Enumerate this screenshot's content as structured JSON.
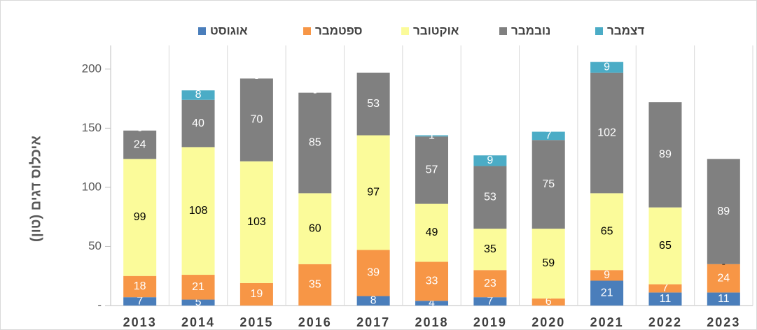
{
  "chart_data": {
    "type": "stacked_bar",
    "y_label": "איכלוס דגים (טון)",
    "categories": [
      "2013",
      "2014",
      "2015",
      "2016",
      "2017",
      "2018",
      "2019",
      "2020",
      "2021",
      "2022",
      "2023"
    ],
    "series": [
      {
        "name": "אוגוסט",
        "color": "#4a7ebb",
        "label_color": "#ffffff",
        "values": [
          7,
          5,
          0,
          0,
          8,
          4,
          7,
          0,
          21,
          11,
          11
        ],
        "value_labels": [
          "7",
          "5",
          null,
          null,
          "8",
          "4",
          "7",
          null,
          "21",
          "11",
          "11"
        ]
      },
      {
        "name": "ספטמבר",
        "color": "#f79646",
        "label_color": "#ffffff",
        "values": [
          18,
          21,
          19,
          35,
          39,
          33,
          23,
          6,
          9,
          7,
          24
        ],
        "value_labels": [
          "18",
          "21",
          "19",
          "35",
          "39",
          "33",
          "23",
          "6",
          "9",
          "7",
          "24"
        ]
      },
      {
        "name": "אוקטובר",
        "color": "#fbfb9a",
        "label_color": "#000000",
        "values": [
          99,
          108,
          103,
          60,
          97,
          49,
          35,
          59,
          65,
          65,
          0
        ],
        "value_labels": [
          "99",
          "108",
          "103",
          "60",
          "97",
          "49",
          "35",
          "59",
          "65",
          "65",
          "-"
        ]
      },
      {
        "name": "נובמבר",
        "color": "#808080",
        "label_color": "#ffffff",
        "values": [
          24,
          40,
          70,
          85,
          53,
          57,
          53,
          75,
          102,
          89,
          89
        ],
        "value_labels": [
          "24",
          "40",
          "70",
          "85",
          "53",
          "57",
          "53",
          "75",
          "102",
          "89",
          "89"
        ]
      },
      {
        "name": "דצמבר",
        "color": "#4bacc6",
        "label_color": "#ffffff",
        "values": [
          0,
          8,
          0,
          0,
          0,
          1,
          9,
          7,
          9,
          0,
          0
        ],
        "value_labels": [
          "-",
          "8",
          "-",
          "-",
          null,
          "1",
          "9",
          "7",
          "9",
          null,
          null
        ]
      }
    ],
    "ylim": [
      0,
      220
    ],
    "yticks": [
      {
        "value": 0,
        "label": "-"
      },
      50,
      100,
      150,
      200
    ],
    "grid": true,
    "legend": "top"
  }
}
